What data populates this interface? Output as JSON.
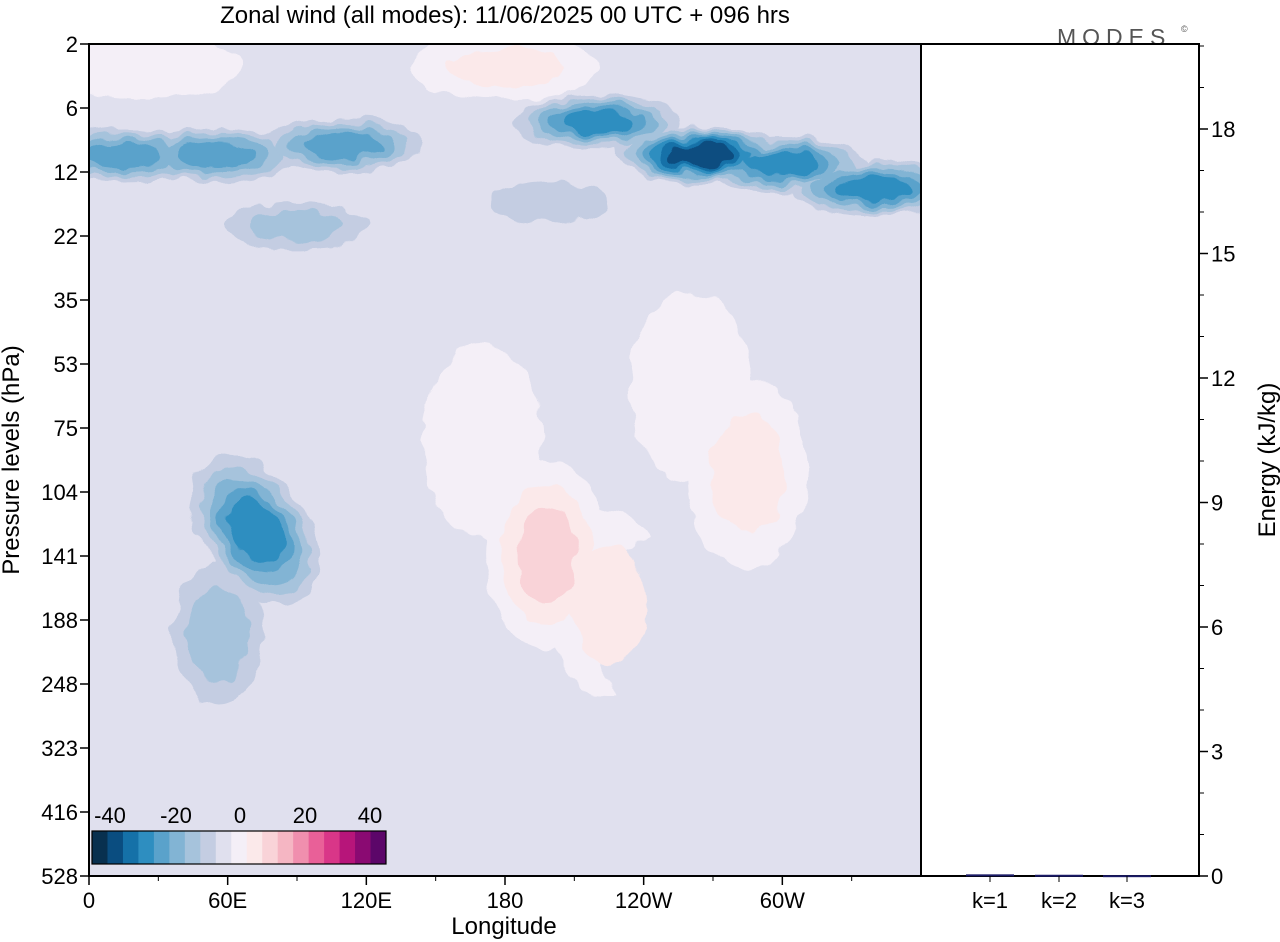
{
  "chart_data": [
    {
      "type": "heatmap",
      "title": "Zonal wind (all modes):  11/06/2025  00 UTC  + 096 hrs",
      "logo": "MODES",
      "logo_mark": "©",
      "xlabel": "Longitude",
      "ylabel": "Pressure levels (hPa)",
      "x_ticks": [
        "0",
        "60E",
        "120E",
        "180",
        "120W",
        "60W"
      ],
      "x_tick_degrees": [
        0,
        60,
        120,
        180,
        240,
        300
      ],
      "xlim": [
        0,
        360
      ],
      "y_ticks": [
        "2",
        "6",
        "12",
        "22",
        "35",
        "53",
        "75",
        "104",
        "141",
        "188",
        "248",
        "323",
        "416",
        "528"
      ],
      "colorbar": {
        "labels": [
          "-40",
          "-20",
          "0",
          "20",
          "40"
        ],
        "min": -45,
        "max": 45,
        "step": 5,
        "colors": [
          "#08304f",
          "#0a4d80",
          "#1571a8",
          "#2e8ec0",
          "#5aa2cb",
          "#82b4d4",
          "#a6c3dc",
          "#c4cde2",
          "#e0e0ee",
          "#f4eff7",
          "#fbe9ea",
          "#f9d3d8",
          "#f5b6c3",
          "#f08fae",
          "#e96098",
          "#d93688",
          "#b7157a",
          "#8a0a72",
          "#5c0669"
        ]
      },
      "features": [
        {
          "lon": 15,
          "p": 10,
          "value": -28
        },
        {
          "lon": 55,
          "p": 10,
          "value": -26
        },
        {
          "lon": 110,
          "p": 9,
          "value": -28
        },
        {
          "lon": 220,
          "p": 7,
          "value": -30
        },
        {
          "lon": 265,
          "p": 10,
          "value": -40
        },
        {
          "lon": 300,
          "p": 11,
          "value": -34
        },
        {
          "lon": 340,
          "p": 14,
          "value": -30
        },
        {
          "lon": 90,
          "p": 20,
          "value": -18
        },
        {
          "lon": 200,
          "p": 16,
          "value": -12
        },
        {
          "lon": 180,
          "p": 3,
          "value": 12
        },
        {
          "lon": 25,
          "p": 3,
          "value": 8
        },
        {
          "lon": 72,
          "p": 125,
          "value": -32
        },
        {
          "lon": 56,
          "p": 200,
          "value": -18
        },
        {
          "lon": 60,
          "p": 95,
          "value": -8
        },
        {
          "lon": 198,
          "p": 140,
          "value": 17
        },
        {
          "lon": 225,
          "p": 175,
          "value": 12
        },
        {
          "lon": 285,
          "p": 95,
          "value": 11
        },
        {
          "lon": 170,
          "p": 80,
          "value": 6
        },
        {
          "lon": 260,
          "p": 60,
          "value": 5
        },
        {
          "lon": 246,
          "p": 200,
          "value": -8
        },
        {
          "lon": 195,
          "p": 528,
          "value": -6
        },
        {
          "lon": 100,
          "p": 460,
          "value": -5
        }
      ]
    },
    {
      "type": "bar",
      "ylabel": "Energy (kJ/kg)",
      "categories": [
        "k=1",
        "k=2",
        "k=3"
      ],
      "values": [
        0.04,
        0.03,
        0.02
      ],
      "ylim": [
        0,
        20
      ],
      "y_ticks": [
        0,
        3,
        6,
        9,
        12,
        15,
        18
      ],
      "y_minor_step": 1
    }
  ]
}
